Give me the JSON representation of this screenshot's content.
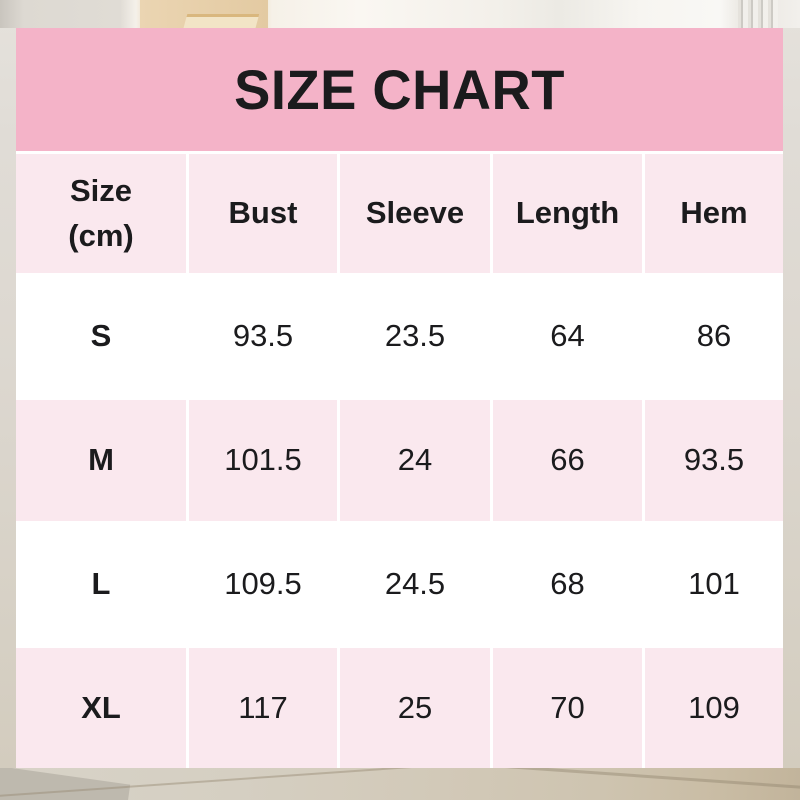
{
  "colors": {
    "banner_pink": "#F4B3C8",
    "cell_pink": "#FAE8EE",
    "cell_white": "#FFFFFF",
    "text_dark": "#1B1B1D"
  },
  "chart_data": {
    "type": "table",
    "title": "SIZE CHART",
    "unit_note": "(cm)",
    "columns": [
      "Size\n(cm)",
      "Bust",
      "Sleeve",
      "Length",
      "Hem"
    ],
    "rows": [
      [
        "S",
        93.5,
        23.5,
        64,
        86
      ],
      [
        "M",
        101.5,
        24,
        66,
        93.5
      ],
      [
        "L",
        109.5,
        24.5,
        68,
        101
      ],
      [
        "XL",
        117,
        25,
        70,
        109
      ]
    ]
  }
}
